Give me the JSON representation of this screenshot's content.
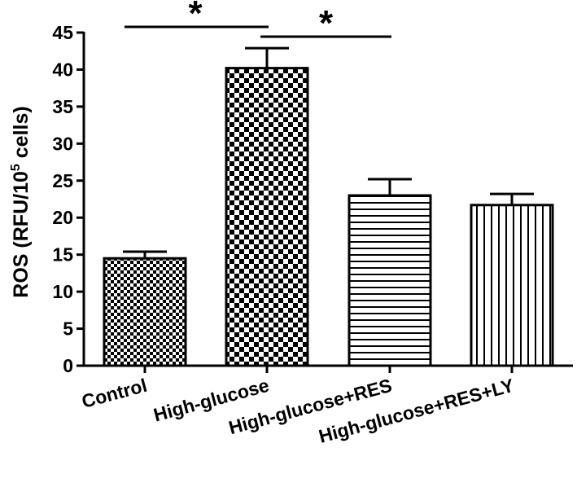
{
  "chart_data": {
    "type": "bar",
    "categories": [
      "Control",
      "High-glucose",
      "High-glucose+RES",
      "High-glucose+RES+LY"
    ],
    "values": [
      14.5,
      40.2,
      23.0,
      21.7
    ],
    "errors": [
      0.9,
      2.7,
      2.2,
      1.5
    ],
    "patterns": [
      "checker-fine",
      "checker-coarse",
      "horizontal-lines",
      "vertical-lines"
    ],
    "ylabel": "ROS (RFU/10⁵ cells)",
    "ylabel_parts": {
      "main": "ROS (RFU/10",
      "sup": "5",
      "tail": " cells)"
    },
    "xlabel": "",
    "ylim": [
      0,
      45
    ],
    "yticks": [
      0,
      5,
      10,
      15,
      20,
      25,
      30,
      35,
      40,
      45
    ],
    "grid": false,
    "significance": [
      {
        "from": 0,
        "to": 1,
        "label": "*"
      },
      {
        "from": 1,
        "to": 2,
        "label": "*"
      }
    ]
  }
}
